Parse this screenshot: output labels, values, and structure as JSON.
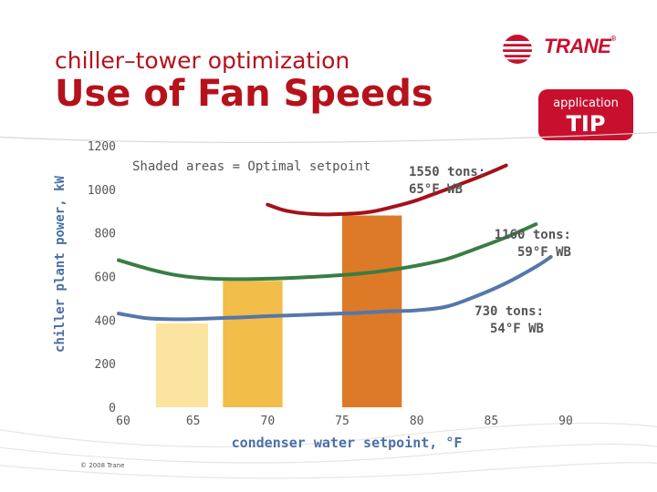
{
  "header": {
    "subtitle": "chiller–tower optimization",
    "title": "Use of Fan Speeds"
  },
  "logo": {
    "text": "TRANE",
    "reg": "®"
  },
  "badge": {
    "small": "application",
    "big": "TIP"
  },
  "footer": {
    "copyright": "© 2008 Trane"
  },
  "colors": {
    "brand_red": "#c8102e",
    "title_red": "#b5121b",
    "axis_text": "#555555",
    "curve_red": "#a3121b",
    "curve_green": "#3a7d44",
    "curve_blue": "#5577aa",
    "bar_1": "#fbe4a0",
    "bar_2": "#f2bd48",
    "bar_3": "#dd7a28"
  },
  "chart_data": {
    "type": "line",
    "title": "Use of Fan Speeds",
    "xlabel": "condenser water setpoint, °F",
    "ylabel": "chiller plant power, kW",
    "xlim": [
      60,
      90
    ],
    "ylim": [
      0,
      1200
    ],
    "xticks": [
      "60",
      "65",
      "70",
      "75",
      "80",
      "85",
      "90"
    ],
    "yticks": [
      "0",
      "200",
      "400",
      "600",
      "800",
      "1000",
      "1200"
    ],
    "note": "Shaded areas = Optimal setpoint",
    "series": [
      {
        "name": "1550 tons: 65°F WB",
        "label_lines": [
          "1550 tons:",
          "65°F WB"
        ],
        "color": "#a3121b",
        "points": [
          [
            70,
            930
          ],
          [
            71,
            906
          ],
          [
            72,
            893
          ],
          [
            73,
            887
          ],
          [
            74,
            885
          ],
          [
            75,
            887
          ],
          [
            76,
            890
          ],
          [
            77,
            898
          ],
          [
            78,
            913
          ],
          [
            79,
            930
          ],
          [
            80,
            950
          ],
          [
            81,
            975
          ],
          [
            82,
            1000
          ],
          [
            83,
            1026
          ],
          [
            84,
            1052
          ],
          [
            85,
            1080
          ],
          [
            86,
            1110
          ]
        ]
      },
      {
        "name": "1160 tons: 59°F WB",
        "label_lines": [
          "1160 tons:",
          "59°F WB"
        ],
        "color": "#3a7d44",
        "points": [
          [
            60,
            675
          ],
          [
            62,
            635
          ],
          [
            64,
            605
          ],
          [
            66,
            591
          ],
          [
            68,
            588
          ],
          [
            70,
            590
          ],
          [
            72,
            595
          ],
          [
            74,
            602
          ],
          [
            76,
            612
          ],
          [
            78,
            628
          ],
          [
            80,
            650
          ],
          [
            82,
            680
          ],
          [
            84,
            728
          ],
          [
            86,
            780
          ],
          [
            88,
            840
          ]
        ]
      },
      {
        "name": "730 tons: 54°F WB",
        "label_lines": [
          "730 tons:",
          "54°F WB"
        ],
        "color": "#5577aa",
        "points": [
          [
            60,
            430
          ],
          [
            62,
            408
          ],
          [
            64,
            404
          ],
          [
            66,
            407
          ],
          [
            68,
            412
          ],
          [
            70,
            418
          ],
          [
            72,
            423
          ],
          [
            74,
            428
          ],
          [
            76,
            433
          ],
          [
            78,
            440
          ],
          [
            80,
            445
          ],
          [
            82,
            462
          ],
          [
            84,
            510
          ],
          [
            86,
            570
          ],
          [
            88,
            645
          ],
          [
            89,
            690
          ]
        ]
      }
    ],
    "shaded_bars": [
      {
        "x0": 62.5,
        "x1": 66.0,
        "value": 385,
        "color": "#fbe4a0"
      },
      {
        "x0": 67.0,
        "x1": 71.0,
        "value": 580,
        "color": "#f2bd48"
      },
      {
        "x0": 75.0,
        "x1": 79.0,
        "value": 880,
        "color": "#dd7a28"
      }
    ]
  }
}
